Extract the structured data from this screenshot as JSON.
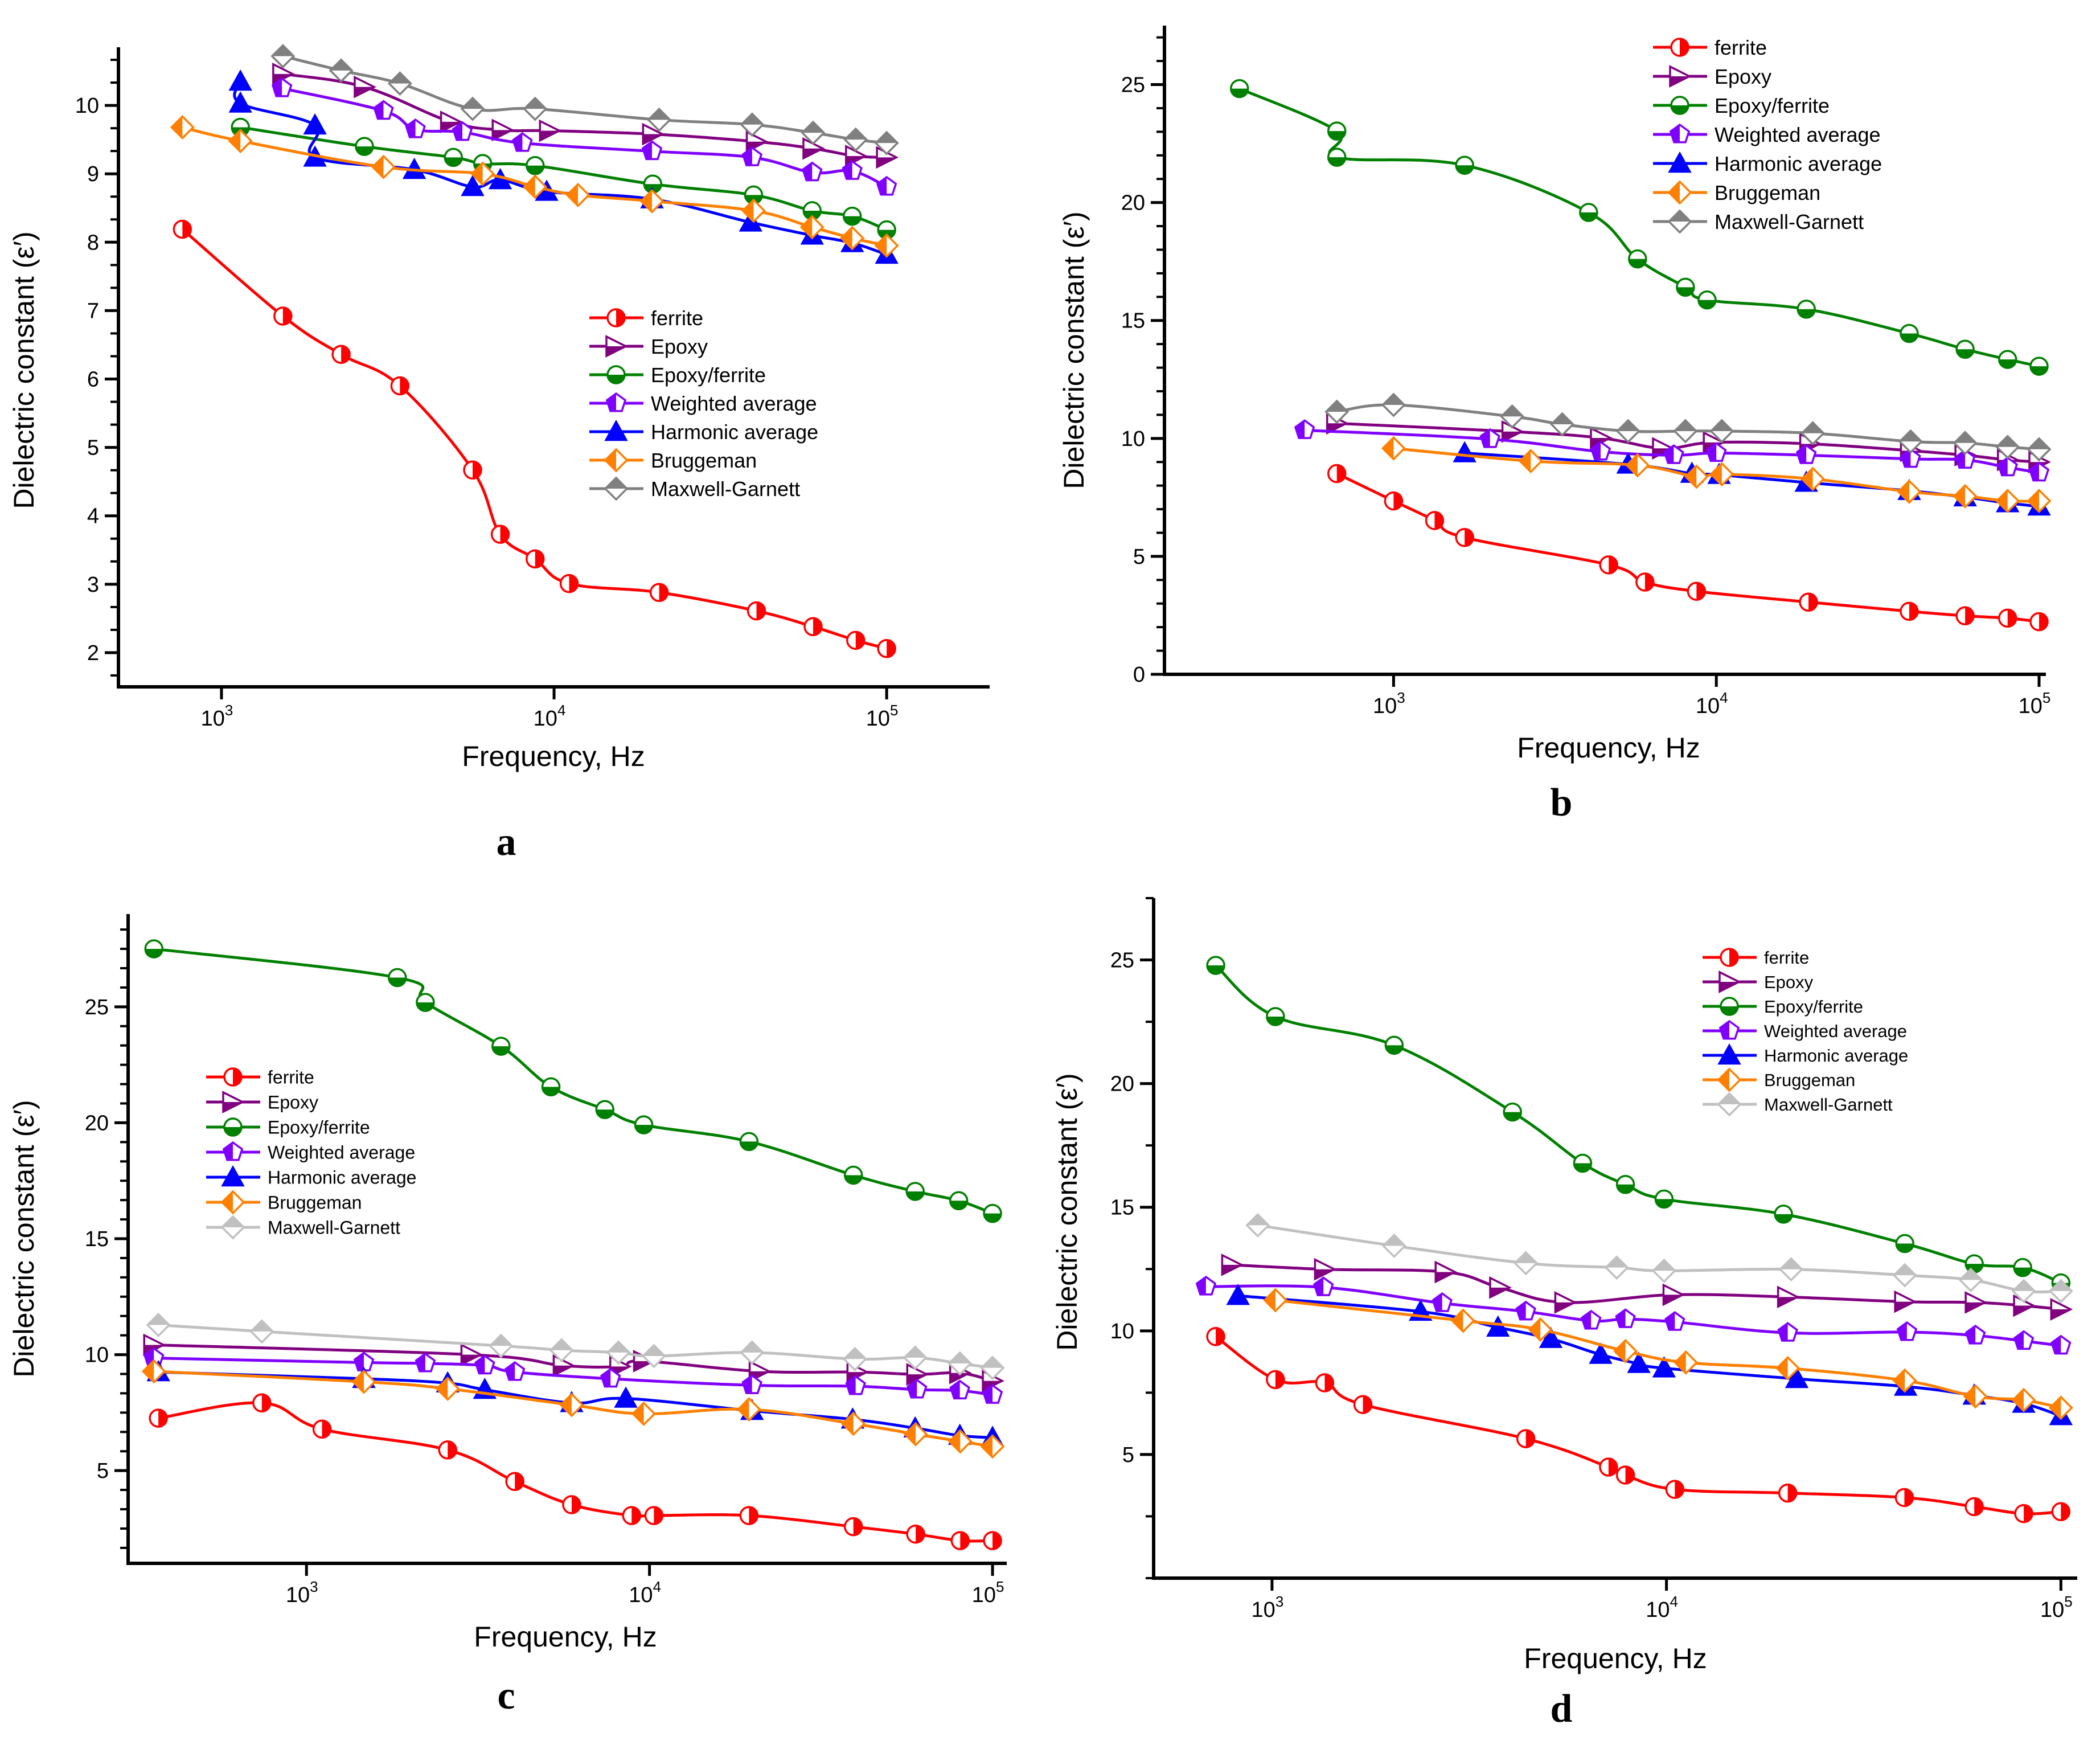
{
  "chart_data": [
    {
      "type": "line",
      "panel_label": "a",
      "xlabel": "Frequency, Hz",
      "ylabel": "Dielectric constant (ε′)",
      "xscale": "log",
      "xlim": [
        490,
        204000
      ],
      "ylim": [
        1.5,
        10.85
      ],
      "yticks": [
        2,
        3,
        4,
        5,
        6,
        7,
        8,
        9,
        10
      ],
      "xticks": [
        1000,
        10000,
        100000
      ],
      "xtick_labels": [
        {
          "base": "10",
          "exp": "3"
        },
        {
          "base": "10",
          "exp": "4"
        },
        {
          "base": "10",
          "exp": "5"
        }
      ],
      "grid": false,
      "legend": "center-right",
      "series": [
        {
          "name": "ferrite",
          "color": "#ff0000",
          "marker": "circle-half-right",
          "x": [
            763,
            1530,
            2290,
            3440,
            5690,
            6890,
            8770,
            11100,
            20700,
            40600,
            60100,
            80700,
            100000
          ],
          "y": [
            8.19,
            6.92,
            6.36,
            5.9,
            4.67,
            3.73,
            3.37,
            3.01,
            2.88,
            2.61,
            2.38,
            2.18,
            2.06
          ]
        },
        {
          "name": "Epoxy",
          "color": "#800080",
          "marker": "triangle-right-half-bottom",
          "x": [
            1530,
            2690,
            4890,
            6990,
            9700,
            19800,
            40600,
            60100,
            80700,
            100000
          ],
          "y": [
            10.46,
            10.27,
            9.76,
            9.64,
            9.63,
            9.58,
            9.47,
            9.37,
            9.26,
            9.24
          ]
        },
        {
          "name": "Epoxy/ferrite",
          "color": "#008000",
          "marker": "circle-half-bottom",
          "x": [
            1140,
            2690,
            4980,
            6100,
            8770,
            19800,
            39800,
            59700,
            78800,
            100000
          ],
          "y": [
            9.68,
            9.4,
            9.24,
            9.15,
            9.12,
            8.85,
            8.69,
            8.46,
            8.38,
            8.18
          ]
        },
        {
          "name": "Weighted average",
          "color": "#8000ff",
          "marker": "pentagon-half-left",
          "x": [
            1520,
            3070,
            3830,
            5300,
            8030,
            19700,
            39400,
            59700,
            78800,
            100000
          ],
          "y": [
            10.25,
            9.92,
            9.65,
            9.61,
            9.45,
            9.33,
            9.24,
            9.02,
            9.04,
            8.81
          ]
        },
        {
          "name": "Harmonic average",
          "color": "#0000ff",
          "marker": "triangle-up-filled",
          "x": [
            1140,
            1140,
            1910,
            1910,
            3800,
            5690,
            6890,
            9500,
            19700,
            39000,
            59700,
            78800,
            100000
          ],
          "y": [
            10.35,
            10.03,
            9.71,
            9.24,
            9.06,
            8.81,
            8.91,
            8.74,
            8.63,
            8.29,
            8.1,
            7.99,
            7.82
          ]
        },
        {
          "name": "Bruggeman",
          "color": "#ff8000",
          "marker": "diamond-half-left",
          "x": [
            763,
            1140,
            3070,
            6100,
            8770,
            11800,
            19700,
            39800,
            59700,
            78800,
            100000
          ],
          "y": [
            9.68,
            9.48,
            9.1,
            9.0,
            8.81,
            8.69,
            8.6,
            8.46,
            8.22,
            8.06,
            7.95
          ]
        },
        {
          "name": "Maxwell-Garnett",
          "color": "#808080",
          "marker": "diamond-half-top",
          "x": [
            1530,
            2290,
            3440,
            5690,
            8770,
            20700,
            39400,
            60100,
            80700,
            100000
          ],
          "y": [
            10.72,
            10.51,
            10.32,
            9.95,
            9.95,
            9.79,
            9.72,
            9.6,
            9.5,
            9.45
          ]
        }
      ]
    },
    {
      "type": "line",
      "panel_label": "b",
      "xlabel": "Frequency, Hz",
      "ylabel": "Dielectric constant (ε′)",
      "xscale": "log",
      "xlim": [
        195,
        105000
      ],
      "ylim": [
        0,
        27.5
      ],
      "yticks": [
        0,
        5,
        10,
        15,
        20,
        25
      ],
      "xticks": [
        1000,
        10000,
        100000
      ],
      "xtick_labels": [
        {
          "base": "10",
          "exp": "3"
        },
        {
          "base": "10",
          "exp": "4"
        },
        {
          "base": "10",
          "exp": "5"
        }
      ],
      "grid": false,
      "legend": "top-right",
      "series": [
        {
          "name": "ferrite",
          "color": "#ff0000",
          "marker": "circle-half-right",
          "x": [
            667,
            1000,
            1340,
            1660,
            4640,
            6010,
            8680,
            19300,
            39600,
            59000,
            79900,
            100000
          ],
          "y": [
            8.51,
            7.35,
            6.52,
            5.8,
            4.64,
            3.91,
            3.52,
            3.06,
            2.67,
            2.48,
            2.38,
            2.23
          ]
        },
        {
          "name": "Epoxy",
          "color": "#800080",
          "marker": "triangle-right-half-bottom",
          "x": [
            667,
            2330,
            4380,
            6820,
            9800,
            19500,
            40000,
            59000,
            79900,
            100000
          ],
          "y": [
            10.64,
            10.29,
            10.02,
            9.58,
            9.83,
            9.77,
            9.48,
            9.29,
            9.09,
            9.0
          ]
        },
        {
          "name": "Epoxy/ferrite",
          "color": "#008000",
          "marker": "circle-half-bottom",
          "x": [
            333,
            667,
            667,
            1660,
            4020,
            5700,
            8020,
            9360,
            19000,
            39600,
            59000,
            79900,
            100000
          ],
          "y": [
            24.83,
            23.03,
            21.92,
            21.58,
            19.58,
            17.61,
            16.41,
            15.87,
            15.48,
            14.45,
            13.78,
            13.35,
            13.06
          ]
        },
        {
          "name": "Weighted average",
          "color": "#8000ff",
          "marker": "pentagon-half-left",
          "x": [
            530,
            1990,
            4380,
            7380,
            10000,
            19000,
            40000,
            59000,
            79900,
            100000
          ],
          "y": [
            10.35,
            9.97,
            9.44,
            9.29,
            9.38,
            9.29,
            9.13,
            9.09,
            8.77,
            8.55
          ]
        },
        {
          "name": "Harmonic average",
          "color": "#0000ff",
          "marker": "triangle-up-filled",
          "x": [
            1660,
            5330,
            8400,
            10200,
            19000,
            39600,
            59000,
            79900,
            100000
          ],
          "y": [
            9.38,
            8.9,
            8.51,
            8.46,
            8.13,
            7.78,
            7.51,
            7.26,
            7.12
          ]
        },
        {
          "name": "Bruggeman",
          "color": "#ff8000",
          "marker": "diamond-half-left",
          "x": [
            1000,
            2660,
            5700,
            8680,
            10400,
            19900,
            39600,
            59000,
            79900,
            100000
          ],
          "y": [
            9.58,
            9.04,
            8.86,
            8.38,
            8.48,
            8.28,
            7.74,
            7.55,
            7.35,
            7.35
          ]
        },
        {
          "name": "Maxwell-Garnett",
          "color": "#808080",
          "marker": "diamond-half-top",
          "x": [
            667,
            1000,
            2330,
            3330,
            5330,
            8020,
            10400,
            19900,
            40000,
            59000,
            79900,
            100000
          ],
          "y": [
            11.13,
            11.42,
            10.93,
            10.6,
            10.31,
            10.31,
            10.31,
            10.22,
            9.87,
            9.81,
            9.64,
            9.54
          ]
        }
      ]
    },
    {
      "type": "line",
      "panel_label": "c",
      "xlabel": "Frequency, Hz",
      "ylabel": "Dielectric constant (ε′)",
      "xscale": "log",
      "xlim": [
        302,
        110000
      ],
      "ylim": [
        1,
        29
      ],
      "yticks": [
        5,
        10,
        15,
        20,
        25
      ],
      "xticks": [
        1000,
        10000,
        100000
      ],
      "xtick_labels": [
        {
          "base": "10",
          "exp": "3"
        },
        {
          "base": "10",
          "exp": "4"
        },
        {
          "base": "10",
          "exp": "5"
        }
      ],
      "grid": false,
      "legend": "center-left",
      "series": [
        {
          "name": "ferrite",
          "color": "#ff0000",
          "marker": "circle-half-right",
          "x": [
            370,
            741,
            1110,
            2580,
            4050,
            5930,
            8870,
            10300,
            19500,
            39300,
            59700,
            80500,
            100000
          ],
          "y": [
            7.26,
            7.92,
            6.79,
            5.89,
            4.53,
            3.53,
            3.06,
            3.06,
            3.06,
            2.58,
            2.26,
            1.98,
            1.98
          ]
        },
        {
          "name": "Epoxy",
          "color": "#800080",
          "marker": "triangle-right-half-bottom",
          "x": [
            359,
            3020,
            5610,
            8200,
            9620,
            20900,
            40300,
            60200,
            80300,
            100000
          ],
          "y": [
            10.42,
            10.0,
            9.53,
            9.49,
            9.72,
            9.28,
            9.25,
            9.15,
            9.21,
            8.87
          ]
        },
        {
          "name": "Epoxy/ferrite",
          "color": "#008000",
          "marker": "circle-half-bottom",
          "x": [
            359,
            1840,
            2220,
            3690,
            5160,
            7410,
            9620,
            19500,
            39300,
            59500,
            79700,
            100000
          ],
          "y": [
            27.5,
            26.26,
            25.19,
            23.3,
            21.55,
            20.57,
            19.91,
            19.19,
            17.74,
            17.04,
            16.64,
            16.09
          ]
        },
        {
          "name": "Weighted average",
          "color": "#8000ff",
          "marker": "pentagon-half-left",
          "x": [
            359,
            1470,
            2220,
            3310,
            4050,
            7700,
            19900,
            39900,
            60200,
            80300,
            100000
          ],
          "y": [
            9.85,
            9.66,
            9.62,
            9.53,
            9.25,
            8.96,
            8.68,
            8.64,
            8.49,
            8.45,
            8.26
          ]
        },
        {
          "name": "Harmonic average",
          "color": "#0000ff",
          "marker": "triangle-up-filled",
          "x": [
            370,
            1470,
            2580,
            3310,
            5930,
            8530,
            19900,
            39100,
            59500,
            80300,
            100000
          ],
          "y": [
            9.25,
            8.96,
            8.77,
            8.49,
            7.92,
            8.11,
            7.58,
            7.21,
            6.83,
            6.51,
            6.42
          ]
        },
        {
          "name": "Bruggeman",
          "color": "#ff8000",
          "marker": "diamond-half-left",
          "x": [
            359,
            1470,
            2580,
            5930,
            9620,
            19500,
            39300,
            59700,
            80500,
            100000
          ],
          "y": [
            9.28,
            8.83,
            8.53,
            7.83,
            7.45,
            7.64,
            7.02,
            6.57,
            6.26,
            6.04
          ]
        },
        {
          "name": "Maxwell-Garnett",
          "color": "#c0c0c0",
          "marker": "diamond-half-top",
          "x": [
            370,
            741,
            3690,
            5540,
            8120,
            10300,
            19900,
            39700,
            59500,
            80300,
            100000
          ],
          "y": [
            11.28,
            11.0,
            10.38,
            10.19,
            10.09,
            9.94,
            10.09,
            9.81,
            9.87,
            9.62,
            9.43
          ]
        }
      ]
    },
    {
      "type": "line",
      "panel_label": "d",
      "xlabel": "Frequency, Hz",
      "ylabel": "Dielectric constant (ε′)",
      "xscale": "log",
      "xlim": [
        501,
        110000
      ],
      "ylim": [
        0,
        27.5
      ],
      "yticks": [
        5,
        10,
        15,
        20,
        25
      ],
      "xticks": [
        1000,
        10000,
        100000
      ],
      "xtick_labels": [
        {
          "base": "10",
          "exp": "3"
        },
        {
          "base": "10",
          "exp": "4"
        },
        {
          "base": "10",
          "exp": "5"
        }
      ],
      "grid": false,
      "legend": "top-right",
      "series": [
        {
          "name": "ferrite",
          "color": "#ff0000",
          "marker": "circle-half-right",
          "x": [
            720,
            1020,
            1360,
            1700,
            4400,
            7130,
            7870,
            10500,
            20300,
            40100,
            60300,
            80500,
            100000
          ],
          "y": [
            9.77,
            8.03,
            7.9,
            7.02,
            5.64,
            4.49,
            4.17,
            3.59,
            3.44,
            3.26,
            2.89,
            2.61,
            2.69
          ]
        },
        {
          "name": "Epoxy",
          "color": "#800080",
          "marker": "triangle-right-half-bottom",
          "x": [
            791,
            1360,
            2750,
            3780,
            5530,
            10400,
            20300,
            40200,
            60700,
            80500,
            100000
          ],
          "y": [
            12.67,
            12.49,
            12.38,
            11.75,
            11.15,
            11.46,
            11.37,
            11.18,
            11.15,
            11.02,
            10.87
          ]
        },
        {
          "name": "Epoxy/ferrite",
          "color": "#008000",
          "marker": "circle-half-bottom",
          "x": [
            720,
            1020,
            2040,
            4070,
            6130,
            7870,
            9860,
            19800,
            40200,
            60300,
            80000,
            100000
          ],
          "y": [
            24.78,
            22.71,
            21.55,
            18.85,
            16.78,
            15.92,
            15.33,
            14.72,
            13.53,
            12.71,
            12.56,
            11.94
          ]
        },
        {
          "name": "Weighted average",
          "color": "#8000ff",
          "marker": "pentagon-half-left",
          "x": [
            680,
            1350,
            2700,
            4400,
            6440,
            7870,
            10500,
            20300,
            40700,
            60700,
            80500,
            100000
          ],
          "y": [
            11.79,
            11.76,
            11.12,
            10.78,
            10.41,
            10.47,
            10.36,
            9.92,
            9.95,
            9.81,
            9.59,
            9.4
          ]
        },
        {
          "name": "Harmonic average",
          "color": "#0000ff",
          "marker": "triangle-up-filled",
          "x": [
            820,
            2380,
            3740,
            5090,
            6810,
            8510,
            9860,
            21400,
            40400,
            60300,
            80500,
            100000
          ],
          "y": [
            11.42,
            10.78,
            10.14,
            9.68,
            9.04,
            8.67,
            8.49,
            8.06,
            7.75,
            7.39,
            7.06,
            6.56
          ]
        },
        {
          "name": "Bruggeman",
          "color": "#ff8000",
          "marker": "diamond-half-left",
          "x": [
            1020,
            3050,
            4790,
            7870,
            11200,
            20300,
            40200,
            60700,
            80500,
            100000
          ],
          "y": [
            11.24,
            10.41,
            10.05,
            9.18,
            8.72,
            8.49,
            7.99,
            7.35,
            7.2,
            6.89
          ]
        },
        {
          "name": "Maxwell-Garnett",
          "color": "#c0c0c0",
          "marker": "diamond-half-top",
          "x": [
            920,
            2040,
            4400,
            7480,
            9860,
            20700,
            40200,
            59100,
            80500,
            100000
          ],
          "y": [
            14.27,
            13.44,
            12.74,
            12.56,
            12.43,
            12.49,
            12.25,
            12.06,
            11.61,
            11.61
          ]
        }
      ]
    }
  ]
}
